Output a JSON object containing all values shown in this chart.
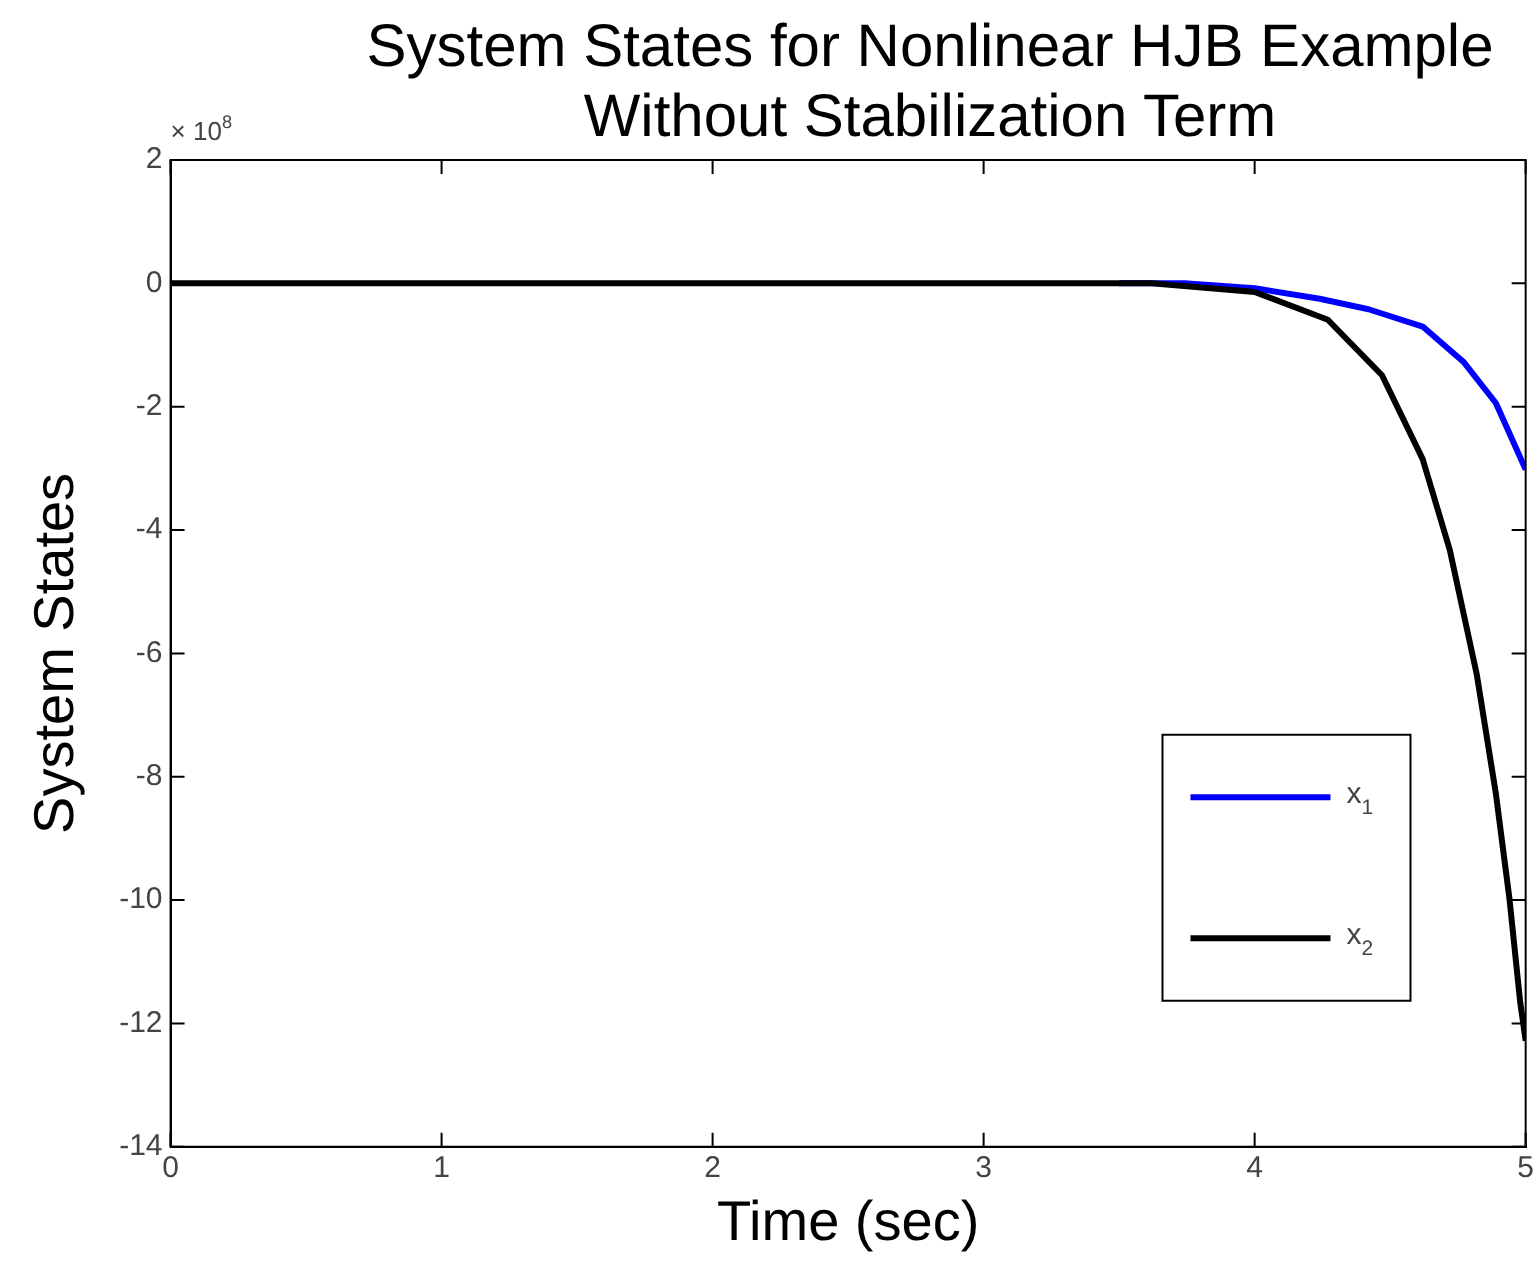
{
  "chart_data": {
    "type": "line",
    "title": "System States for Nonlinear HJB Example Without Stabilization Term",
    "xlabel": "Time (sec)",
    "ylabel": "System States",
    "xlim": [
      0,
      5
    ],
    "xticks": [
      0,
      1,
      2,
      3,
      4,
      5
    ],
    "ylim": [
      -14,
      2
    ],
    "yticks": [
      2,
      0,
      -2,
      -4,
      -6,
      -8,
      -10,
      -12,
      -14
    ],
    "grid": false,
    "legend": "bottom right",
    "marker": "none",
    "line_style": "solid",
    "annotations": [
      "× 10$^{8}$"
    ],
    "series": [
      {
        "name": "x$_{1}$",
        "color": "#0000ff",
        "x": [
          3.5,
          3.74,
          4.0,
          4.24,
          4.42,
          4.62,
          4.77,
          4.89,
          5.0
        ],
        "values": [
          0,
          0,
          -0.08,
          -0.25,
          -0.42,
          -0.7,
          -1.27,
          -1.94,
          -3.02
        ]
      },
      {
        "name": "x$_{2}$",
        "color": "#000000",
        "x": [
          0,
          1,
          2,
          3,
          3.5,
          3.62,
          4.0,
          4.27,
          4.47,
          4.62,
          4.72,
          4.82,
          4.89,
          4.94,
          4.98,
          5.0
        ],
        "values": [
          0,
          0,
          0,
          0,
          0,
          0,
          -0.14,
          -0.59,
          -1.49,
          -2.85,
          -4.32,
          -6.35,
          -8.27,
          -9.97,
          -11.66,
          -12.28
        ]
      }
    ]
  }
}
